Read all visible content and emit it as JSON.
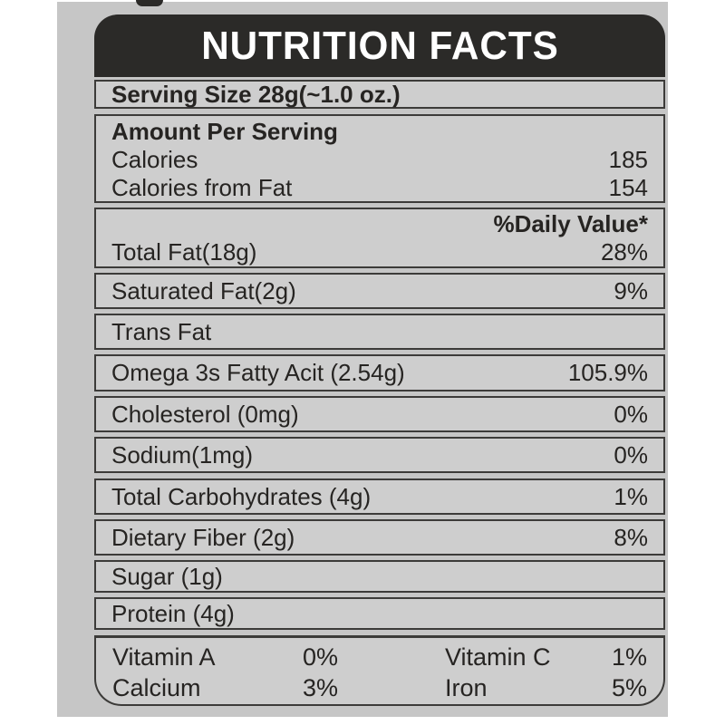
{
  "colors": {
    "page_background": "#ffffff",
    "panel_background": "#c6c6c6",
    "box_background": "#cecece",
    "header_background": "#2b2a28",
    "border": "#3c3b39",
    "title_text": "#ffffff",
    "body_text": "#262422"
  },
  "label": {
    "title": "NUTRITION FACTS",
    "serving_size": "Serving Size 28g(~1.0 oz.)",
    "amount_header": "Amount Per Serving",
    "calorie_rows": [
      {
        "label": "Calories",
        "value": "185"
      },
      {
        "label": "Calories from Fat",
        "value": "154"
      }
    ],
    "daily_value_header": "%Daily Value*",
    "nutrients": [
      {
        "label": "Total Fat(18g)",
        "value": "28%"
      },
      {
        "label": "Saturated Fat(2g)",
        "value": "9%"
      },
      {
        "label": "Trans Fat",
        "value": ""
      },
      {
        "label": "Omega 3s Fatty Acit (2.54g)",
        "value": "105.9%"
      },
      {
        "label": "Cholesterol (0mg)",
        "value": "0%"
      },
      {
        "label": "Sodium(1mg)",
        "value": "0%"
      },
      {
        "label": "Total Carbohydrates (4g)",
        "value": "1%"
      },
      {
        "label": "Dietary Fiber (2g)",
        "value": "8%"
      },
      {
        "label": "Sugar (1g)",
        "value": ""
      },
      {
        "label": "Protein (4g)",
        "value": ""
      }
    ],
    "micronutrients": [
      {
        "label": "Vitamin A",
        "value": "0%"
      },
      {
        "label": "Vitamin C",
        "value": "1%"
      },
      {
        "label": "Calcium",
        "value": "3%"
      },
      {
        "label": "Iron",
        "value": "5%"
      }
    ]
  }
}
